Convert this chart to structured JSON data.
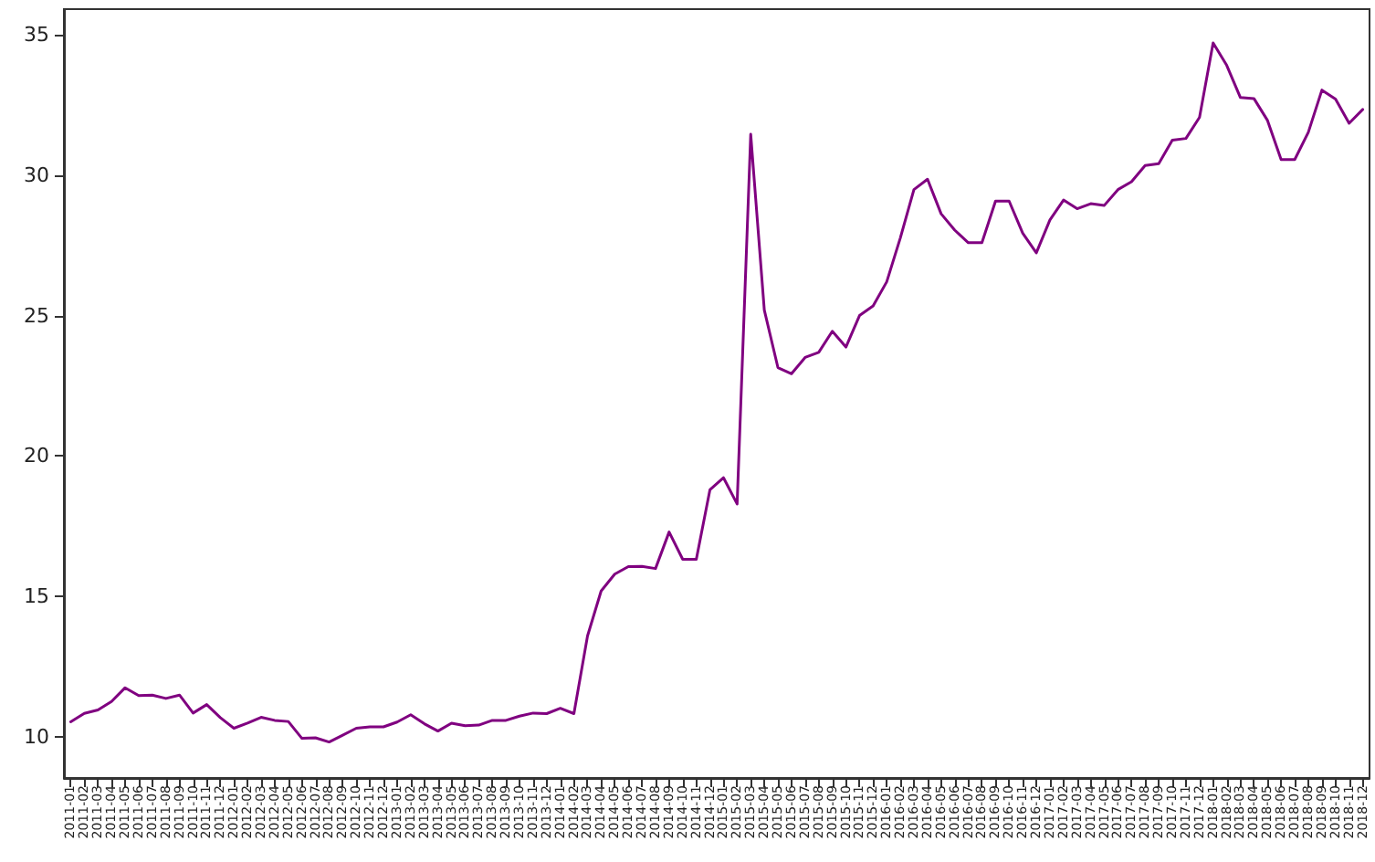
{
  "chart_data": {
    "type": "line",
    "categories": [
      "2011-01",
      "2011-02",
      "2011-03",
      "2011-04",
      "2011-05",
      "2011-06",
      "2011-07",
      "2011-08",
      "2011-09",
      "2011-10",
      "2011-11",
      "2011-12",
      "2012-01",
      "2012-02",
      "2012-03",
      "2012-04",
      "2012-05",
      "2012-06",
      "2012-07",
      "2012-08",
      "2012-09",
      "2012-10",
      "2012-11",
      "2012-12",
      "2013-01",
      "2013-02",
      "2013-03",
      "2013-04",
      "2013-05",
      "2013-06",
      "2013-07",
      "2013-08",
      "2013-09",
      "2013-10",
      "2013-11",
      "2013-12",
      "2014-01",
      "2014-02",
      "2014-03",
      "2014-04",
      "2014-05",
      "2014-06",
      "2014-07",
      "2014-08",
      "2014-09",
      "2014-10",
      "2014-11",
      "2014-12",
      "2015-01",
      "2015-02",
      "2015-03",
      "2015-04",
      "2015-05",
      "2015-06",
      "2015-07",
      "2015-08",
      "2015-09",
      "2015-10",
      "2015-11",
      "2015-12",
      "2016-01",
      "2016-02",
      "2016-03",
      "2016-04",
      "2016-05",
      "2016-06",
      "2016-07",
      "2016-08",
      "2016-09",
      "2016-10",
      "2016-11",
      "2016-12",
      "2017-01",
      "2017-02",
      "2017-03",
      "2017-04",
      "2017-05",
      "2017-06",
      "2017-07",
      "2017-08",
      "2017-09",
      "2017-10",
      "2017-11",
      "2017-12",
      "2018-01",
      "2018-02",
      "2018-03",
      "2018-04",
      "2018-05",
      "2018-06",
      "2018-07",
      "2018-08",
      "2018-09",
      "2018-10",
      "2018-11",
      "2018-12"
    ],
    "series": [
      {
        "color": "#800080",
        "values": [
          10.55,
          10.85,
          10.97,
          11.27,
          11.76,
          11.48,
          11.5,
          11.38,
          11.5,
          10.86,
          11.16,
          10.7,
          10.32,
          10.5,
          10.71,
          10.6,
          10.56,
          9.96,
          9.98,
          9.83,
          10.07,
          10.32,
          10.37,
          10.37,
          10.54,
          10.8,
          10.48,
          10.22,
          10.5,
          10.41,
          10.43,
          10.6,
          10.6,
          10.75,
          10.86,
          10.84,
          11.03,
          10.84,
          13.6,
          15.2,
          15.8,
          16.07,
          16.08,
          16.0,
          17.3,
          16.33,
          16.33,
          18.8,
          19.23,
          18.3,
          31.45,
          25.19,
          23.15,
          22.93,
          23.51,
          23.69,
          24.44,
          23.88,
          25.0,
          25.34,
          26.2,
          27.76,
          29.48,
          29.85,
          28.62,
          28.04,
          27.59,
          27.59,
          29.07,
          29.07,
          27.93,
          27.23,
          28.4,
          29.11,
          28.8,
          28.98,
          28.92,
          29.48,
          29.76,
          30.34,
          30.4,
          31.24,
          31.3,
          32.05,
          34.7,
          33.9,
          32.76,
          32.72,
          31.94,
          30.55,
          30.55,
          31.52,
          33.02,
          32.7,
          31.84,
          32.33
        ]
      }
    ],
    "ylim": [
      8.55,
      35.9
    ],
    "yticks": [
      10,
      15,
      20,
      25,
      30,
      35
    ],
    "grid": false,
    "marker": "none",
    "line_style": "solid"
  }
}
